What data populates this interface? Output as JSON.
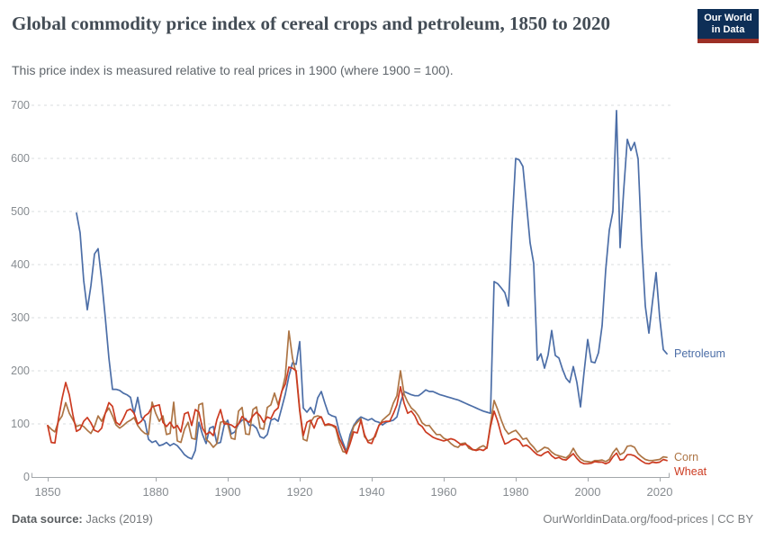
{
  "header": {
    "title": "Global commodity price index of cereal crops and petroleum, 1850 to 2020",
    "subtitle": "This price index is measured relative to real prices in 1900 (where 1900 = 100)."
  },
  "logo": {
    "line1": "Our World",
    "line2": "in Data"
  },
  "footer": {
    "source_label": "Data source:",
    "source_value": " Jacks (2019)",
    "attribution": "OurWorldinData.org/food-prices | CC BY"
  },
  "colors": {
    "petroleum": "#4c6ea7",
    "corn": "#ad7545",
    "wheat": "#cc3b21",
    "grid": "#d9dcdf",
    "axis": "#a3a7ab",
    "tick_text": "#878c91"
  },
  "chart_data": {
    "type": "line",
    "title": "Global commodity price index of cereal crops and petroleum, 1850 to 2020",
    "xlabel": "",
    "ylabel": "",
    "x_range": [
      1850,
      2022
    ],
    "ylim": [
      0,
      700
    ],
    "yticks": [
      0,
      100,
      200,
      300,
      400,
      500,
      600,
      700
    ],
    "xticks": [
      1850,
      1880,
      1900,
      1920,
      1940,
      1960,
      1980,
      2000,
      2020
    ],
    "grid": "horizontal-dashed",
    "legend_position": "end-of-line-labels",
    "series": [
      {
        "name": "Petroleum",
        "color": "#4c6ea7",
        "start_year": 1858,
        "values": [
          497,
          460,
          370,
          315,
          360,
          420,
          430,
          370,
          300,
          224,
          165,
          165,
          163,
          158,
          155,
          150,
          119,
          150,
          113,
          105,
          71,
          65,
          68,
          59,
          61,
          65,
          59,
          63,
          59,
          51,
          42,
          37,
          34,
          50,
          103,
          80,
          63,
          92,
          95,
          63,
          65,
          97,
          107,
          81,
          85,
          100,
          107,
          110,
          97,
          98,
          92,
          76,
          73,
          80,
          107,
          110,
          105,
          130,
          156,
          190,
          215,
          212,
          255,
          130,
          122,
          131,
          119,
          149,
          161,
          139,
          119,
          115,
          113,
          85,
          65,
          48,
          80,
          97,
          107,
          113,
          110,
          107,
          110,
          105,
          103,
          98,
          103,
          105,
          107,
          113,
          140,
          161,
          158,
          155,
          153,
          153,
          158,
          164,
          161,
          161,
          158,
          155,
          153,
          151,
          149,
          147,
          145,
          142,
          139,
          136,
          133,
          130,
          127,
          124,
          122,
          120,
          368,
          364,
          356,
          347,
          322,
          475,
          600,
          597,
          585,
          514,
          441,
          402,
          220,
          232,
          205,
          230,
          276,
          229,
          224,
          203,
          186,
          178,
          208,
          178,
          132,
          198,
          259,
          217,
          215,
          234,
          285,
          390,
          465,
          500,
          690,
          432,
          540,
          636,
          615,
          630,
          599,
          440,
          322,
          271,
          330,
          385,
          300,
          240,
          232
        ]
      },
      {
        "name": "Corn",
        "color": "#ad7545",
        "start_year": 1850,
        "values": [
          97,
          90,
          85,
          105,
          115,
          140,
          120,
          108,
          95,
          98,
          95,
          88,
          82,
          95,
          115,
          105,
          120,
          130,
          115,
          98,
          92,
          97,
          103,
          107,
          112,
          97,
          88,
          82,
          80,
          141,
          120,
          105,
          115,
          80,
          82,
          141,
          68,
          65,
          90,
          103,
          73,
          71,
          136,
          139,
          71,
          65,
          56,
          63,
          103,
          105,
          100,
          73,
          71,
          124,
          131,
          81,
          80,
          127,
          132,
          92,
          90,
          131,
          136,
          158,
          136,
          160,
          190,
          275,
          224,
          195,
          124,
          71,
          68,
          103,
          113,
          115,
          113,
          97,
          98,
          97,
          92,
          65,
          48,
          46,
          71,
          95,
          103,
          110,
          76,
          68,
          71,
          76,
          97,
          107,
          113,
          119,
          139,
          153,
          200,
          156,
          141,
          130,
          124,
          115,
          102,
          97,
          97,
          88,
          80,
          80,
          73,
          70,
          63,
          58,
          56,
          63,
          64,
          54,
          51,
          51,
          56,
          59,
          54,
          100,
          144,
          127,
          107,
          90,
          81,
          85,
          88,
          80,
          71,
          73,
          63,
          56,
          47,
          51,
          56,
          54,
          47,
          42,
          40,
          38,
          36,
          42,
          54,
          42,
          34,
          30,
          29,
          28,
          31,
          31,
          32,
          29,
          33,
          46,
          54,
          42,
          46,
          58,
          59,
          56,
          44,
          38,
          33,
          31,
          31,
          32,
          33,
          38,
          37
        ]
      },
      {
        "name": "Wheat",
        "color": "#cc3b21",
        "start_year": 1850,
        "values": [
          97,
          65,
          64,
          110,
          148,
          178,
          155,
          117,
          86,
          90,
          105,
          112,
          102,
          88,
          85,
          92,
          120,
          140,
          133,
          103,
          98,
          110,
          125,
          128,
          120,
          100,
          105,
          115,
          120,
          132,
          134,
          136,
          103,
          95,
          103,
          92,
          97,
          85,
          119,
          122,
          97,
          127,
          122,
          92,
          80,
          85,
          78,
          108,
          127,
          100,
          100,
          98,
          93,
          100,
          114,
          107,
          103,
          115,
          122,
          115,
          103,
          113,
          110,
          124,
          130,
          161,
          175,
          207,
          205,
          200,
          127,
          78,
          103,
          107,
          92,
          110,
          113,
          98,
          100,
          98,
          95,
          73,
          59,
          44,
          63,
          85,
          83,
          107,
          80,
          65,
          63,
          80,
          97,
          103,
          105,
          105,
          119,
          136,
          170,
          139,
          120,
          124,
          115,
          100,
          95,
          85,
          80,
          75,
          72,
          70,
          68,
          70,
          72,
          70,
          65,
          60,
          62,
          58,
          52,
          50,
          52,
          50,
          55,
          95,
          124,
          105,
          80,
          62,
          65,
          70,
          72,
          68,
          58,
          60,
          55,
          48,
          42,
          40,
          45,
          48,
          40,
          35,
          37,
          33,
          32,
          38,
          44,
          35,
          28,
          25,
          25,
          26,
          29,
          28,
          28,
          25,
          28,
          38,
          45,
          32,
          33,
          42,
          42,
          40,
          35,
          30,
          26,
          25,
          28,
          27,
          28,
          33,
          31
        ]
      }
    ]
  }
}
